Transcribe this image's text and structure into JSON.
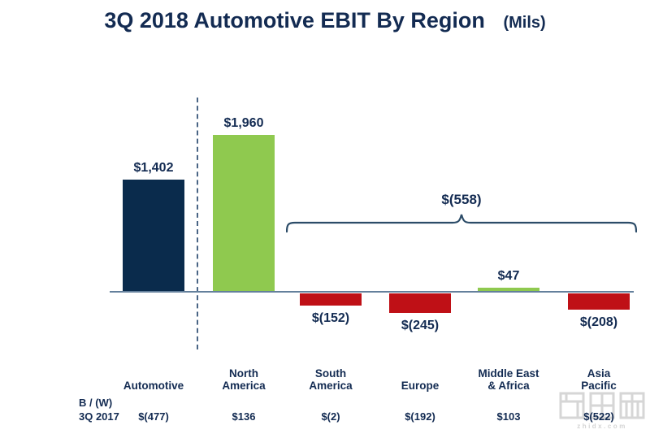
{
  "title": {
    "main": "3Q 2018 Automotive EBIT By Region",
    "suffix": "(Mils)"
  },
  "chart_data": {
    "type": "bar",
    "title": "3Q 2018 Automotive EBIT By Region (Mils)",
    "unit": "$ millions",
    "categories": [
      "Automotive",
      "North America",
      "South America",
      "Europe",
      "Middle East & Africa",
      "Asia Pacific"
    ],
    "categories_display": [
      "Automotive",
      "North\nAmerica",
      "South\nAmerica",
      "Europe",
      "Middle East\n& Africa",
      "Asia\nPacific"
    ],
    "values": [
      1402,
      1960,
      -152,
      -245,
      47,
      -208
    ],
    "bar_labels": [
      "$1,402",
      "$1,960",
      "$(152)",
      "$(245)",
      "$47",
      "$(208)"
    ],
    "bar_colors": [
      "#0a2b4c",
      "#8fc94f",
      "#bf1016",
      "#bf1016",
      "#8fc94f",
      "#bf1016"
    ],
    "bracket": {
      "label": "$(558)",
      "spans": [
        "South America",
        "Europe",
        "Middle East & Africa",
        "Asia Pacific"
      ]
    },
    "comparison_row": {
      "label_line1": "B / (W)",
      "label_line2": "3Q 2017",
      "values": [
        "$(477)",
        "$136",
        "$(2)",
        "$(192)",
        "$103",
        "$(522)"
      ]
    },
    "layout_hints": {
      "baseline": "zero line drawn, no y-axis ticks",
      "separator": "dashed vertical line between total Automotive bar and regional bars",
      "grid": "off",
      "legend": "none"
    },
    "colors": {
      "text_navy": "#132b52",
      "axis_line": "#64809c",
      "dashed_separator": "#4a6585",
      "bracket": "#2c4c68",
      "background": "#ffffff"
    }
  },
  "watermark": {
    "text": "智东西",
    "url": "zhidx.com"
  }
}
